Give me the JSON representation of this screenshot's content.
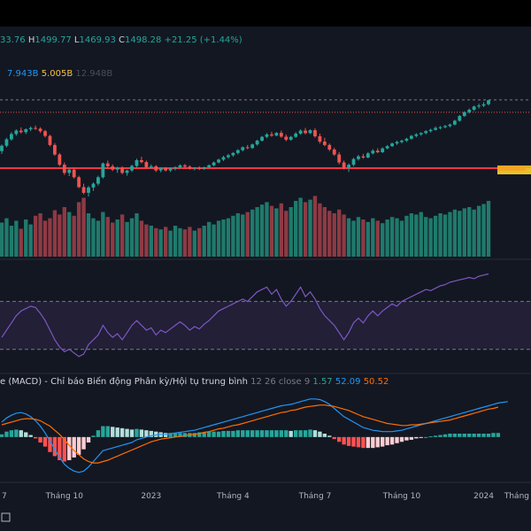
{
  "header": {
    "open_fragment": "33.76",
    "high_label": "H",
    "high": "1499.77",
    "low_label": "L",
    "low": "1469.93",
    "close_label": "C",
    "close": "1498.28",
    "change": "+21.25 (+1.44%)"
  },
  "volume_legend": {
    "v1": "7.943B",
    "v2": "5.005B",
    "v3": "12.948B"
  },
  "macd_legend": {
    "name": "e (MACD) - Chỉ báo Biến động Phân kỳ/Hội tụ trung bình",
    "params": "12 26 close 9",
    "v1": "1.57",
    "v2": "52.09",
    "v3": "50.52"
  },
  "colors": {
    "up": "#26a69a",
    "down": "#ef5350",
    "vol_up": "#1f7a6c",
    "vol_down": "#8e3a44",
    "rsi_line": "#7e57c2",
    "rsi_band": "#2a2340",
    "macd_line": "#2196f3",
    "signal_line": "#ff6d00",
    "support": "#f23645",
    "orange_marker": "#f5a623",
    "yellow_marker": "#e6c229"
  },
  "chart_data": {
    "type": "candlestick",
    "x_ticks": [
      {
        "label": "7",
        "i": 0
      },
      {
        "label": "Tháng 10",
        "i": 13
      },
      {
        "label": "2023",
        "i": 31
      },
      {
        "label": "Tháng 4",
        "i": 48
      },
      {
        "label": "Tháng 7",
        "i": 65
      },
      {
        "label": "Tháng 10",
        "i": 83
      },
      {
        "label": "2024",
        "i": 100
      },
      {
        "label": "Tháng",
        "i": 116
      }
    ],
    "price_ylim": [
      860,
      1560
    ],
    "reference_line": 1500,
    "support_line": 1140,
    "candles": [
      [
        1230,
        1265,
        1215,
        1258
      ],
      [
        1258,
        1300,
        1250,
        1292
      ],
      [
        1292,
        1330,
        1285,
        1320
      ],
      [
        1320,
        1345,
        1310,
        1338
      ],
      [
        1338,
        1355,
        1322,
        1330
      ],
      [
        1330,
        1350,
        1320,
        1345
      ],
      [
        1345,
        1360,
        1335,
        1352
      ],
      [
        1352,
        1365,
        1342,
        1348
      ],
      [
        1348,
        1356,
        1326,
        1335
      ],
      [
        1335,
        1342,
        1302,
        1310
      ],
      [
        1310,
        1316,
        1255,
        1262
      ],
      [
        1262,
        1272,
        1205,
        1212
      ],
      [
        1212,
        1220,
        1150,
        1158
      ],
      [
        1158,
        1170,
        1105,
        1115
      ],
      [
        1115,
        1140,
        1098,
        1132
      ],
      [
        1132,
        1145,
        1085,
        1092
      ],
      [
        1092,
        1100,
        1035,
        1040
      ],
      [
        1040,
        1058,
        1002,
        1010
      ],
      [
        1010,
        1046,
        990,
        1038
      ],
      [
        1038,
        1065,
        1020,
        1058
      ],
      [
        1058,
        1100,
        1048,
        1092
      ],
      [
        1092,
        1170,
        1085,
        1165
      ],
      [
        1165,
        1180,
        1140,
        1150
      ],
      [
        1150,
        1160,
        1125,
        1132
      ],
      [
        1132,
        1148,
        1115,
        1140
      ],
      [
        1140,
        1150,
        1108,
        1115
      ],
      [
        1115,
        1132,
        1100,
        1128
      ],
      [
        1128,
        1158,
        1120,
        1152
      ],
      [
        1152,
        1190,
        1145,
        1182
      ],
      [
        1182,
        1200,
        1165,
        1172
      ],
      [
        1172,
        1180,
        1138,
        1145
      ],
      [
        1145,
        1160,
        1135,
        1150
      ],
      [
        1150,
        1156,
        1120,
        1128
      ],
      [
        1128,
        1145,
        1118,
        1140
      ],
      [
        1140,
        1146,
        1122,
        1128
      ],
      [
        1128,
        1142,
        1120,
        1138
      ],
      [
        1138,
        1150,
        1128,
        1145
      ],
      [
        1145,
        1160,
        1138,
        1155
      ],
      [
        1155,
        1162,
        1140,
        1148
      ],
      [
        1148,
        1155,
        1132,
        1138
      ],
      [
        1138,
        1146,
        1128,
        1142
      ],
      [
        1142,
        1150,
        1130,
        1136
      ],
      [
        1136,
        1148,
        1130,
        1145
      ],
      [
        1145,
        1160,
        1140,
        1155
      ],
      [
        1155,
        1175,
        1150,
        1170
      ],
      [
        1170,
        1190,
        1165,
        1185
      ],
      [
        1185,
        1205,
        1178,
        1198
      ],
      [
        1198,
        1215,
        1190,
        1208
      ],
      [
        1208,
        1225,
        1200,
        1220
      ],
      [
        1220,
        1240,
        1212,
        1235
      ],
      [
        1235,
        1255,
        1228,
        1250
      ],
      [
        1250,
        1262,
        1240,
        1246
      ],
      [
        1246,
        1270,
        1242,
        1265
      ],
      [
        1265,
        1290,
        1258,
        1285
      ],
      [
        1285,
        1310,
        1280,
        1305
      ],
      [
        1305,
        1325,
        1298,
        1318
      ],
      [
        1318,
        1332,
        1305,
        1312
      ],
      [
        1312,
        1330,
        1308,
        1326
      ],
      [
        1326,
        1338,
        1300,
        1306
      ],
      [
        1306,
        1318,
        1282,
        1290
      ],
      [
        1290,
        1310,
        1285,
        1305
      ],
      [
        1305,
        1330,
        1300,
        1322
      ],
      [
        1322,
        1345,
        1316,
        1338
      ],
      [
        1338,
        1352,
        1318,
        1325
      ],
      [
        1325,
        1345,
        1320,
        1340
      ],
      [
        1340,
        1350,
        1300,
        1308
      ],
      [
        1308,
        1322,
        1270,
        1280
      ],
      [
        1280,
        1300,
        1255,
        1262
      ],
      [
        1262,
        1270,
        1230,
        1238
      ],
      [
        1238,
        1248,
        1205,
        1212
      ],
      [
        1212,
        1225,
        1160,
        1170
      ],
      [
        1170,
        1180,
        1132,
        1142
      ],
      [
        1142,
        1165,
        1120,
        1158
      ],
      [
        1158,
        1195,
        1150,
        1188
      ],
      [
        1188,
        1210,
        1180,
        1202
      ],
      [
        1202,
        1215,
        1190,
        1196
      ],
      [
        1196,
        1225,
        1192,
        1218
      ],
      [
        1218,
        1240,
        1212,
        1232
      ],
      [
        1232,
        1245,
        1218,
        1224
      ],
      [
        1224,
        1250,
        1220,
        1244
      ],
      [
        1244,
        1262,
        1240,
        1256
      ],
      [
        1256,
        1275,
        1252,
        1270
      ],
      [
        1270,
        1285,
        1262,
        1278
      ],
      [
        1278,
        1290,
        1270,
        1285
      ],
      [
        1285,
        1300,
        1278,
        1295
      ],
      [
        1295,
        1315,
        1290,
        1310
      ],
      [
        1310,
        1325,
        1302,
        1318
      ],
      [
        1318,
        1330,
        1310,
        1325
      ],
      [
        1325,
        1340,
        1318,
        1335
      ],
      [
        1335,
        1348,
        1328,
        1342
      ],
      [
        1342,
        1360,
        1338,
        1352
      ],
      [
        1352,
        1362,
        1345,
        1356
      ],
      [
        1356,
        1368,
        1350,
        1362
      ],
      [
        1362,
        1375,
        1355,
        1370
      ],
      [
        1370,
        1395,
        1365,
        1390
      ],
      [
        1390,
        1420,
        1385,
        1415
      ],
      [
        1415,
        1440,
        1410,
        1435
      ],
      [
        1435,
        1455,
        1428,
        1448
      ],
      [
        1448,
        1470,
        1442,
        1465
      ],
      [
        1465,
        1480,
        1455,
        1470
      ],
      [
        1470,
        1488,
        1462,
        1477
      ],
      [
        1477,
        1500,
        1470,
        1498
      ]
    ],
    "volume": [
      0.55,
      0.62,
      0.5,
      0.58,
      0.45,
      0.6,
      0.52,
      0.66,
      0.7,
      0.58,
      0.62,
      0.75,
      0.68,
      0.8,
      0.72,
      0.66,
      0.88,
      0.95,
      0.7,
      0.62,
      0.58,
      0.72,
      0.64,
      0.55,
      0.6,
      0.68,
      0.56,
      0.62,
      0.7,
      0.58,
      0.52,
      0.5,
      0.46,
      0.44,
      0.48,
      0.42,
      0.5,
      0.46,
      0.44,
      0.48,
      0.42,
      0.46,
      0.5,
      0.56,
      0.52,
      0.58,
      0.6,
      0.62,
      0.66,
      0.7,
      0.68,
      0.72,
      0.76,
      0.8,
      0.84,
      0.88,
      0.82,
      0.78,
      0.86,
      0.74,
      0.8,
      0.9,
      0.95,
      0.88,
      0.92,
      0.98,
      0.86,
      0.8,
      0.74,
      0.7,
      0.76,
      0.68,
      0.62,
      0.58,
      0.64,
      0.6,
      0.56,
      0.62,
      0.58,
      0.54,
      0.6,
      0.64,
      0.62,
      0.58,
      0.66,
      0.7,
      0.68,
      0.72,
      0.64,
      0.62,
      0.66,
      0.7,
      0.68,
      0.72,
      0.76,
      0.74,
      0.78,
      0.8,
      0.76,
      0.82,
      0.85,
      0.9
    ],
    "rsi": [
      40,
      46,
      52,
      58,
      62,
      64,
      66,
      65,
      60,
      54,
      46,
      38,
      32,
      28,
      30,
      27,
      24,
      26,
      34,
      38,
      42,
      50,
      44,
      40,
      43,
      38,
      44,
      50,
      54,
      50,
      46,
      48,
      42,
      46,
      44,
      47,
      50,
      53,
      50,
      46,
      49,
      47,
      51,
      54,
      58,
      62,
      64,
      66,
      68,
      70,
      72,
      70,
      74,
      78,
      80,
      82,
      76,
      80,
      72,
      66,
      70,
      76,
      82,
      74,
      78,
      72,
      64,
      58,
      54,
      50,
      44,
      38,
      44,
      52,
      56,
      52,
      58,
      62,
      58,
      62,
      65,
      68,
      66,
      70,
      72,
      74,
      76,
      78,
      80,
      79,
      81,
      83,
      84,
      86,
      87,
      88,
      89,
      90,
      89,
      91,
      92,
      93
    ],
    "rsi_ylim": [
      15,
      100
    ],
    "macd": [
      22,
      28,
      32,
      35,
      36,
      34,
      30,
      24,
      16,
      6,
      -6,
      -18,
      -30,
      -40,
      -46,
      -50,
      -52,
      -50,
      -44,
      -36,
      -28,
      -20,
      -18,
      -16,
      -14,
      -12,
      -10,
      -8,
      -4,
      -2,
      0,
      2,
      3,
      4,
      4,
      5,
      6,
      7,
      8,
      9,
      10,
      12,
      14,
      16,
      18,
      20,
      22,
      24,
      26,
      28,
      30,
      32,
      34,
      36,
      38,
      40,
      42,
      44,
      46,
      47,
      48,
      50,
      52,
      54,
      56,
      56,
      55,
      52,
      48,
      42,
      36,
      30,
      26,
      22,
      18,
      14,
      12,
      10,
      9,
      8,
      8,
      8,
      9,
      10,
      12,
      14,
      16,
      18,
      20,
      22,
      24,
      26,
      28,
      30,
      32,
      34,
      36,
      38,
      40,
      42,
      44,
      46,
      48,
      50,
      51,
      52
    ],
    "signal": [
      18,
      20,
      22,
      24,
      26,
      27,
      27,
      26,
      24,
      20,
      16,
      10,
      4,
      -4,
      -12,
      -20,
      -26,
      -32,
      -36,
      -38,
      -38,
      -36,
      -34,
      -31,
      -28,
      -25,
      -22,
      -19,
      -16,
      -13,
      -10,
      -7,
      -5,
      -3,
      -2,
      -1,
      0,
      1,
      2,
      3,
      4,
      5,
      7,
      8,
      10,
      12,
      13,
      15,
      17,
      18,
      20,
      22,
      24,
      26,
      28,
      30,
      32,
      34,
      36,
      37,
      39,
      40,
      42,
      44,
      45,
      46,
      47,
      47,
      46,
      45,
      43,
      41,
      39,
      36,
      33,
      30,
      28,
      26,
      24,
      22,
      20,
      19,
      18,
      17,
      17,
      18,
      18,
      19,
      20,
      21,
      22,
      23,
      24,
      25,
      27,
      29,
      31,
      33,
      35,
      37,
      39,
      41,
      42,
      44
    ],
    "macd_ylim": [
      -60,
      70
    ]
  }
}
